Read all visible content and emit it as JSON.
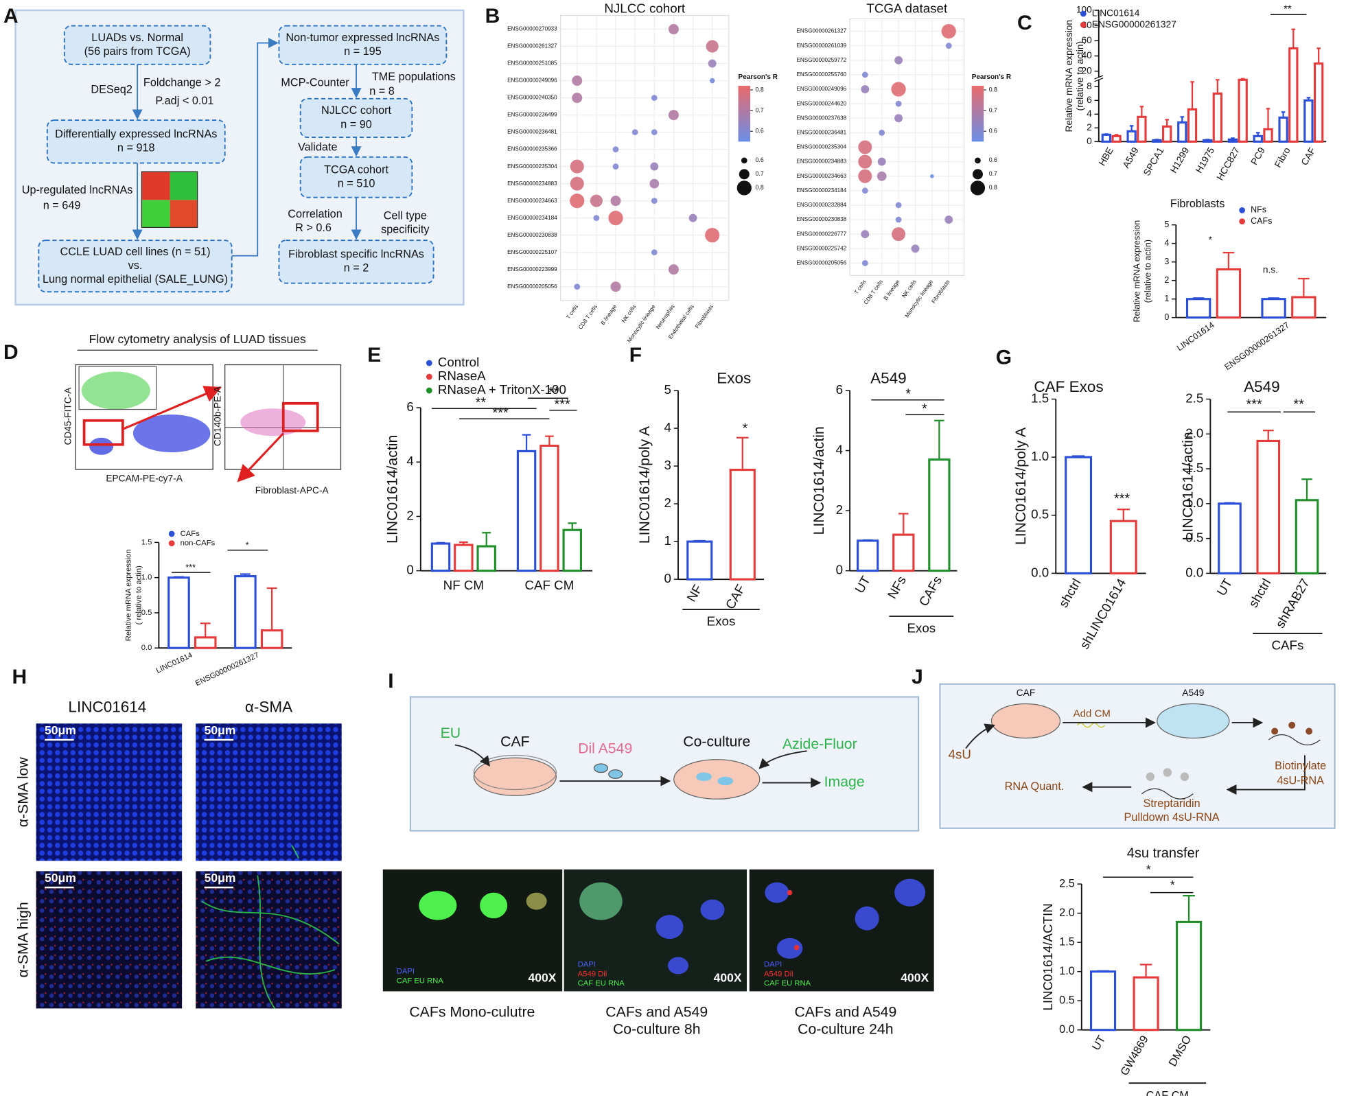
{
  "panels": {
    "letters": [
      "A",
      "B",
      "C",
      "D",
      "E",
      "F",
      "G",
      "H",
      "I",
      "J"
    ],
    "A": {
      "boxes": [
        [
          "LUADs vs. Normal",
          "(56 pairs from TCGA)"
        ],
        [
          "Differentially expressed lncRNAs",
          "n = 918"
        ],
        [
          "CCLE LUAD cell lines (n = 51)",
          "vs.",
          "Lung normal epithelial (SALE_LUNG)"
        ],
        [
          "Non-tumor expressed lncRNAs",
          "n = 195"
        ],
        [
          "NJLCC cohort",
          "n = 90"
        ],
        [
          "TCGA cohort",
          "n = 510"
        ],
        [
          "Fibroblast specific lncRNAs",
          "n = 2"
        ]
      ],
      "labels": [
        "DESeq2",
        "Foldchange > 2",
        "P.adj < 0.01",
        "Up-regulated lncRNAs",
        "n = 649",
        "MCP-Counter",
        "TME populations",
        "n = 8",
        "Validate",
        "Correlation",
        "R > 0.6",
        "Cell type",
        "specificity"
      ]
    },
    "D": {
      "title": "Flow cytometry analysis of LUAD tissues",
      "axes": [
        "CD45-FITC-A",
        "EPCAM-PE-cy7-A",
        "CD140b-PE-A",
        "Fibroblast-APC-A"
      ]
    },
    "H": {
      "columns": [
        "LINC01614",
        "α-SMA"
      ],
      "rows": [
        "α-SMA low",
        "α-SMA high"
      ],
      "scale": "50μm"
    },
    "I": {
      "diagram": [
        "EU",
        "CAF",
        "Dil A549",
        "Co-culture",
        "Azide-Fluor",
        "Image"
      ],
      "stains": [
        "DAPI",
        "CAF EU RNA",
        "A549 Dil"
      ],
      "magnification": "400X",
      "captions": [
        [
          "CAFs Mono-culutre"
        ],
        [
          "CAFs and A549",
          "Co-culture 8h"
        ],
        [
          "CAFs and A549",
          "Co-culture 24h"
        ]
      ]
    },
    "J": {
      "diagram": [
        "4sU",
        "CAF",
        "Add CM",
        "A549",
        "Biotinylate",
        "4sU-RNA",
        "RNA Quant.",
        "Streptaridin",
        "Pulldown 4sU-RNA"
      ]
    }
  },
  "chart_data": [
    {
      "type": "dot",
      "title": "NJLCC cohort",
      "legend_title": "Pearson's R",
      "color_range": [
        "#6a8ee8",
        "#e86a6a"
      ],
      "clim": [
        0.55,
        0.82
      ],
      "colorbar_ticks": [
        0.6,
        0.7,
        0.8
      ],
      "size_legend": [
        0.6,
        0.7,
        0.8
      ],
      "categories": [
        "ENSG00000270933",
        "ENSG00000261327",
        "ENSG00000251085",
        "ENSG00000249096",
        "ENSG00000240350",
        "ENSG00000236499",
        "ENSG00000236481",
        "ENSG00000235366",
        "ENSG00000235304",
        "ENSG00000234883",
        "ENSG00000234663",
        "ENSG00000234184",
        "ENSG00000230838",
        "ENSG00000225107",
        "ENSG00000223999",
        "ENSG00000205056"
      ],
      "series": [
        {
          "name": "T cells",
          "values": [
            null,
            null,
            null,
            0.7,
            0.7,
            null,
            null,
            null,
            0.78,
            0.78,
            0.8,
            null,
            null,
            null,
            null,
            0.6
          ]
        },
        {
          "name": "CD8 T cells",
          "values": [
            null,
            null,
            null,
            null,
            null,
            null,
            null,
            null,
            null,
            null,
            0.75,
            0.6,
            null,
            null,
            null,
            null
          ]
        },
        {
          "name": "B lineage",
          "values": [
            null,
            null,
            null,
            null,
            null,
            null,
            null,
            0.6,
            0.6,
            null,
            0.7,
            0.8,
            null,
            null,
            null,
            0.7
          ]
        },
        {
          "name": "NK cells",
          "values": [
            null,
            null,
            null,
            null,
            null,
            null,
            0.6,
            null,
            null,
            null,
            null,
            null,
            null,
            null,
            null,
            null
          ]
        },
        {
          "name": "Monocytic lineage",
          "values": [
            null,
            null,
            null,
            null,
            0.6,
            null,
            0.6,
            null,
            0.65,
            0.68,
            0.6,
            null,
            null,
            0.6,
            null,
            null
          ]
        },
        {
          "name": "Neutrophils",
          "values": [
            0.7,
            null,
            null,
            null,
            null,
            0.7,
            null,
            null,
            null,
            null,
            null,
            null,
            null,
            null,
            0.7,
            null
          ]
        },
        {
          "name": "Endothelial cells",
          "values": [
            null,
            null,
            null,
            null,
            null,
            null,
            null,
            null,
            null,
            null,
            null,
            0.65,
            null,
            null,
            null,
            null
          ]
        },
        {
          "name": "Fibroblasts",
          "values": [
            null,
            0.75,
            0.65,
            0.58,
            null,
            null,
            null,
            null,
            null,
            null,
            null,
            null,
            0.8,
            null,
            null,
            null
          ]
        }
      ]
    },
    {
      "type": "dot",
      "title": "TCGA dataset",
      "legend_title": "Pearson's R",
      "color_range": [
        "#6a8ee8",
        "#e86a6a"
      ],
      "clim": [
        0.55,
        0.82
      ],
      "colorbar_ticks": [
        0.6,
        0.7,
        0.8
      ],
      "size_legend": [
        0.6,
        0.7,
        0.8
      ],
      "categories": [
        "ENSG00000261327",
        "ENSG00000261039",
        "ENSG00000259772",
        "ENSG00000255760",
        "ENSG00000249096",
        "ENSG00000244620",
        "ENSG00000237638",
        "ENSG00000236481",
        "ENSG00000235304",
        "ENSG00000234883",
        "ENSG00000234663",
        "ENSG00000234184",
        "ENSG00000232884",
        "ENSG00000230838",
        "ENSG00000226777",
        "ENSG00000225742",
        "ENSG00000205056"
      ],
      "series": [
        {
          "name": "T cells",
          "values": [
            null,
            null,
            null,
            0.6,
            0.65,
            null,
            null,
            null,
            0.78,
            0.78,
            0.78,
            0.6,
            null,
            null,
            0.65,
            null,
            0.6
          ]
        },
        {
          "name": "CD8 T cells",
          "values": [
            null,
            null,
            null,
            null,
            null,
            null,
            null,
            0.6,
            null,
            0.65,
            0.68,
            null,
            null,
            null,
            null,
            null,
            null
          ]
        },
        {
          "name": "B lineage",
          "values": [
            null,
            null,
            0.65,
            null,
            0.8,
            0.6,
            0.65,
            null,
            null,
            null,
            null,
            null,
            0.6,
            0.6,
            0.78,
            null,
            null
          ]
        },
        {
          "name": "NK cells",
          "values": [
            null,
            null,
            null,
            null,
            null,
            null,
            null,
            null,
            null,
            null,
            null,
            null,
            null,
            null,
            null,
            0.65,
            null
          ]
        },
        {
          "name": "Monocytic lineage",
          "values": [
            null,
            null,
            null,
            null,
            null,
            null,
            null,
            null,
            null,
            null,
            0.55,
            null,
            null,
            null,
            null,
            null,
            null
          ]
        },
        {
          "name": "Fibroblasts",
          "values": [
            0.8,
            0.6,
            null,
            null,
            null,
            null,
            null,
            null,
            null,
            null,
            null,
            null,
            null,
            0.65,
            null,
            null,
            null
          ]
        }
      ]
    },
    {
      "type": "bar",
      "ylabel": [
        "Relative mRNA expression",
        "(relative to actin)"
      ],
      "categories": [
        "HBE",
        "A549",
        "SPCA1",
        "H1299",
        "H1975",
        "HCC827",
        "PC9",
        "Fibro",
        "CAF"
      ],
      "series": [
        {
          "name": "LINC01614",
          "color": "#2b4fd6",
          "values": [
            1,
            1.5,
            0.2,
            2.8,
            0.2,
            0.3,
            0.8,
            3.5,
            6
          ],
          "errors": [
            0.1,
            0.8,
            0.1,
            0.8,
            0.1,
            0.2,
            0.5,
            0.8,
            0.4
          ]
        },
        {
          "name": "ENSG00000261327",
          "color": "#e53b3b",
          "values": [
            0.8,
            3.6,
            2.2,
            4.7,
            7,
            9,
            1.8,
            50,
            30
          ],
          "errors": [
            0.2,
            1.5,
            1,
            4,
            2,
            1,
            3,
            25,
            20
          ]
        }
      ],
      "ylim": [
        0,
        100
      ],
      "axis_break": [
        9,
        12
      ],
      "yticks": [
        0,
        2,
        4,
        6,
        8,
        20,
        40,
        60,
        80,
        100
      ],
      "annotations": [
        "**"
      ]
    },
    {
      "type": "bar",
      "title": "Fibroblasts",
      "ylabel": [
        "Relative mRNA expression",
        "(relative to actin)"
      ],
      "categories": [
        "LINC01614",
        "ENSG00000261327"
      ],
      "series": [
        {
          "name": "NFs",
          "color": "#2b4fd6",
          "values": [
            1,
            1
          ],
          "errors": [
            0.05,
            0.05
          ]
        },
        {
          "name": "CAFs",
          "color": "#e53b3b",
          "values": [
            2.6,
            1.1
          ],
          "errors": [
            0.9,
            1.0
          ]
        }
      ],
      "ylim": [
        0,
        5
      ],
      "yticks": [
        0,
        1,
        2,
        3,
        4,
        5
      ],
      "annotations": [
        "*",
        "n.s."
      ]
    },
    {
      "type": "bar",
      "ylabel": [
        "Relative mRNA expression",
        "( relative to actin)"
      ],
      "categories": [
        "LINC01614",
        "ENSG00000261327"
      ],
      "series": [
        {
          "name": "CAFs",
          "color": "#2b4fd6",
          "values": [
            1,
            1.02
          ],
          "errors": [
            0.01,
            0.03
          ]
        },
        {
          "name": "non-CAFs",
          "color": "#e53b3b",
          "values": [
            0.15,
            0.25
          ],
          "errors": [
            0.2,
            0.6
          ]
        }
      ],
      "ylim": [
        0,
        1.5
      ],
      "yticks": [
        {
          "value": 0,
          "label": "0.0"
        },
        0.5,
        {
          "value": 1,
          "label": "1.0"
        },
        1.5
      ],
      "annotations": [
        "***",
        "*"
      ]
    },
    {
      "type": "bar",
      "ylabel": [
        "LINC01614/actin"
      ],
      "categories": [
        "NF CM",
        "CAF CM"
      ],
      "series": [
        {
          "name": "Control",
          "color": "#2b4fd6",
          "values": [
            1,
            4.4
          ],
          "errors": [
            0.03,
            0.6
          ]
        },
        {
          "name": "RNaseA",
          "color": "#e53b3b",
          "values": [
            0.95,
            4.6
          ],
          "errors": [
            0.1,
            0.35
          ]
        },
        {
          "name": "RNaseA + TritonX-100",
          "color": "#1f8f2a",
          "values": [
            0.9,
            1.5
          ],
          "errors": [
            0.5,
            0.25
          ]
        }
      ],
      "ylim": [
        0,
        6
      ],
      "yticks": [
        0,
        2,
        4,
        6
      ],
      "annotations": [
        "**",
        "***",
        "**",
        "***"
      ]
    },
    {
      "type": "bar",
      "title": "Exos",
      "ylabel": [
        "LINC01614/poly A"
      ],
      "categories": [
        "NF",
        "CAF"
      ],
      "values": [
        1,
        2.9
      ],
      "errors": [
        0.02,
        0.85
      ],
      "colors": [
        "#2b4fd6",
        "#e53b3b"
      ],
      "ylim": [
        0,
        5
      ],
      "yticks": [
        0,
        1,
        2,
        3,
        4,
        5
      ],
      "annotations": [
        "*"
      ],
      "group": "Exos"
    },
    {
      "type": "bar",
      "title": "A549",
      "ylabel": [
        "LINC01614/actin"
      ],
      "categories": [
        "UT",
        "NFs",
        "CAFs"
      ],
      "values": [
        1,
        1.2,
        3.7
      ],
      "errors": [
        0.02,
        0.7,
        1.3
      ],
      "colors": [
        "#2b4fd6",
        "#e53b3b",
        "#1f8f2a"
      ],
      "ylim": [
        0,
        6
      ],
      "yticks": [
        0,
        2,
        4,
        6
      ],
      "annotations": [
        "*",
        "*"
      ],
      "group": "Exos"
    },
    {
      "type": "bar",
      "title": "CAF Exos",
      "ylabel": [
        "LINC01614/poly A"
      ],
      "categories": [
        "shctrl",
        "shLINC01614"
      ],
      "values": [
        1,
        0.45
      ],
      "errors": [
        0.01,
        0.1
      ],
      "colors": [
        "#2b4fd6",
        "#e53b3b"
      ],
      "ylim": [
        0,
        1.5
      ],
      "yticks": [
        {
          "value": 0,
          "label": "0.0"
        },
        0.5,
        {
          "value": 1,
          "label": "1.0"
        },
        1.5
      ],
      "annotations": [
        "***"
      ]
    },
    {
      "type": "bar",
      "title": "A549",
      "ylabel": [
        "LINC01614/actin"
      ],
      "categories": [
        "UT",
        "shctrl",
        "shRAB27"
      ],
      "values": [
        1,
        1.9,
        1.05
      ],
      "errors": [
        0.01,
        0.15,
        0.3
      ],
      "colors": [
        "#2b4fd6",
        "#e53b3b",
        "#1f8f2a"
      ],
      "ylim": [
        0,
        2.5
      ],
      "yticks": [
        {
          "value": 0,
          "label": "0.0"
        },
        0.5,
        {
          "value": 1,
          "label": "1.0"
        },
        1.5,
        {
          "value": 2,
          "label": "2.0"
        },
        2.5
      ],
      "annotations": [
        "***",
        "**"
      ],
      "group": "CAFs"
    },
    {
      "type": "bar",
      "title": "4su transfer",
      "ylabel": [
        "LINC01614/ACTIN"
      ],
      "categories": [
        "UT",
        "GW4869",
        "DMSO"
      ],
      "values": [
        1,
        0.9,
        1.85
      ],
      "errors": [
        0.01,
        0.22,
        0.45
      ],
      "colors": [
        "#2b4fd6",
        "#e53b3b",
        "#1f8f2a"
      ],
      "ylim": [
        0,
        2.5
      ],
      "yticks": [
        {
          "value": 0,
          "label": "0.0"
        },
        0.5,
        {
          "value": 1,
          "label": "1.0"
        },
        1.5,
        {
          "value": 2,
          "label": "2.0"
        },
        2.5
      ],
      "annotations": [
        "*",
        "*"
      ],
      "group": "CAF CM"
    }
  ]
}
